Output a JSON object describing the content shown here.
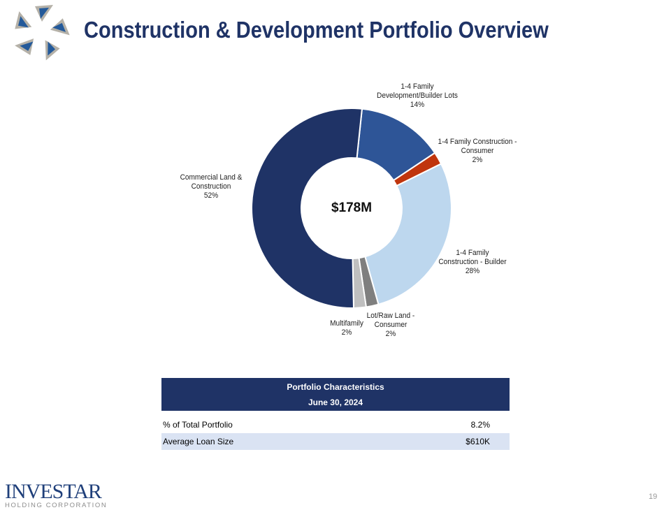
{
  "title": "Construction & Development Portfolio Overview",
  "page_number": "19",
  "logo": {
    "name": "INVESTAR",
    "subtitle": "HOLDING CORPORATION"
  },
  "chart_data": {
    "type": "pie",
    "variant": "donut",
    "center_label": "$178M",
    "slices": [
      {
        "label": "1-4 Family Development/Builder Lots",
        "lines": [
          "1-4 Family",
          "Development/Builder Lots",
          "14%"
        ],
        "value": 14,
        "color": "#2e5597"
      },
      {
        "label": "1-4 Family Construction - Consumer",
        "lines": [
          "1-4 Family Construction -",
          "Consumer",
          "2%"
        ],
        "value": 2,
        "color": "#c0350d"
      },
      {
        "label": "1-4 Family Construction - Builder",
        "lines": [
          "1-4 Family",
          "Construction - Builder",
          "28%"
        ],
        "value": 28,
        "color": "#bdd7ee"
      },
      {
        "label": "Lot/Raw Land - Consumer",
        "lines": [
          "Lot/Raw Land -",
          "Consumer",
          "2%"
        ],
        "value": 2,
        "color": "#7f7f7f"
      },
      {
        "label": "Multifamily",
        "lines": [
          "Multifamily",
          "2%"
        ],
        "value": 2,
        "color": "#bfbfbf"
      },
      {
        "label": "Commercial Land & Construction",
        "lines": [
          "Commercial Land &",
          "Construction",
          "52%"
        ],
        "value": 52,
        "color": "#1f3366"
      }
    ]
  },
  "table": {
    "header": [
      "Portfolio Characteristics",
      "June 30, 2024"
    ],
    "rows": [
      {
        "label": "% of Total Portfolio",
        "value": "8.2%"
      },
      {
        "label": "Average Loan Size",
        "value": "$610K"
      }
    ]
  }
}
